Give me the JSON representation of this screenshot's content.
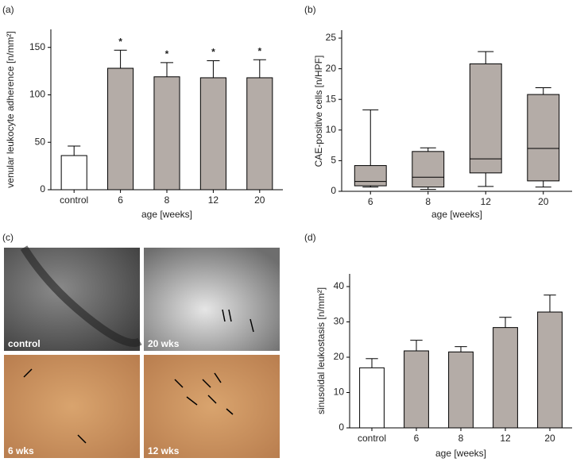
{
  "chart_data": [
    {
      "type": "bar",
      "panel_label": "(a)",
      "x_label": "age [weeks]",
      "y_label": "venular leukocyte adherence [n/mm²]",
      "categories": [
        "control",
        "6",
        "8",
        "12",
        "20"
      ],
      "values": [
        36,
        128,
        119,
        118,
        118
      ],
      "errors": [
        10,
        19,
        15,
        18,
        19
      ],
      "annotations": [
        null,
        "*",
        "*",
        "*",
        "*"
      ],
      "colors": [
        "#ffffff",
        "#b4aca7",
        "#b4aca7",
        "#b4aca7",
        "#b4aca7"
      ],
      "ylim": [
        0,
        169
      ],
      "yticks": [
        0,
        50,
        100,
        150
      ]
    },
    {
      "type": "box",
      "panel_label": "(b)",
      "x_label": "age [weeks]",
      "y_label": "CAE-positive cells [n/HPF]",
      "categories": [
        "6",
        "8",
        "12",
        "20"
      ],
      "min": [
        0.7,
        0.3,
        0.8,
        0.7
      ],
      "q1": [
        0.9,
        0.7,
        3.0,
        1.7
      ],
      "median": [
        1.6,
        2.3,
        5.3,
        7.0
      ],
      "q3": [
        4.2,
        6.5,
        20.8,
        15.8
      ],
      "max": [
        13.3,
        7.1,
        22.8,
        16.9
      ],
      "color": "#b4aca7",
      "ylim": [
        0,
        26.3
      ],
      "yticks": [
        0,
        5,
        10,
        15,
        20,
        25
      ]
    },
    {
      "type": "bar",
      "panel_label": "(d)",
      "x_label": "age [weeks]",
      "y_label": "sinusoidal leukostasis [n/mm²]",
      "categories": [
        "control",
        "6",
        "8",
        "12",
        "20"
      ],
      "values": [
        17,
        21.8,
        21.5,
        28.4,
        32.8
      ],
      "errors": [
        2.6,
        3,
        1.5,
        2.9,
        4.8
      ],
      "colors": [
        "#ffffff",
        "#b4aca7",
        "#b4aca7",
        "#b4aca7",
        "#b4aca7"
      ],
      "ylim": [
        0,
        43.6
      ],
      "yticks": [
        0,
        10,
        20,
        30,
        40
      ]
    }
  ],
  "image_panel": {
    "panel_label": "(c)",
    "labels": [
      "control",
      "20 wks",
      "6 wks",
      "12 wks"
    ]
  }
}
